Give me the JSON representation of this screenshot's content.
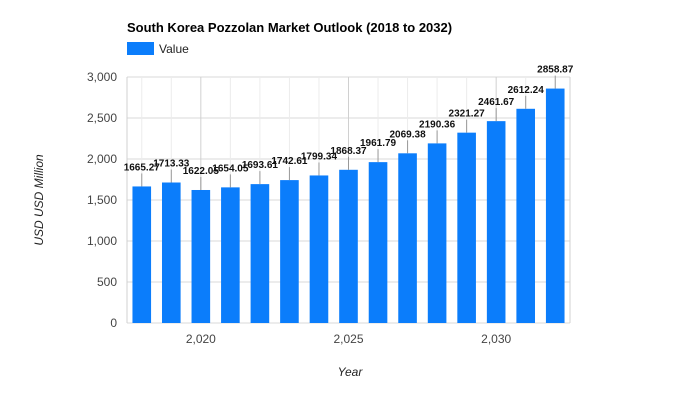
{
  "chart_data": {
    "type": "bar",
    "title": "South Korea Pozzolan Market Outlook (2018 to 2032)",
    "xlabel": "Year",
    "ylabel": "USD USD Million",
    "series": [
      {
        "name": "Value",
        "color": "#0b7dfb",
        "x": [
          2018,
          2019,
          2020,
          2021,
          2022,
          2023,
          2024,
          2025,
          2026,
          2027,
          2028,
          2029,
          2030,
          2031,
          2032
        ],
        "values": [
          1665.27,
          1713.33,
          1622.05,
          1654.05,
          1693.61,
          1742.61,
          1799.34,
          1868.37,
          1961.79,
          2069.38,
          2190.36,
          2321.27,
          2461.67,
          2612.24,
          2858.87
        ]
      }
    ],
    "data_labels": [
      "1665.27",
      "1713.33",
      "1622.05",
      "1654.05",
      "1693.61",
      "1742.61",
      "1799.34",
      "1868.37",
      "1961.79",
      "2069.38",
      "2190.36",
      "2321.27",
      "2461.67",
      "2612.24",
      "2858.87"
    ],
    "y_ticks": [
      0,
      500,
      1000,
      1500,
      2000,
      2500,
      3000
    ],
    "y_tick_labels": [
      "0",
      "500",
      "1,000",
      "1,500",
      "2,000",
      "2,500",
      "3,000"
    ],
    "x_ticks": [
      2020,
      2025,
      2030
    ],
    "x_tick_labels": [
      "2,020",
      "2,025",
      "2,030"
    ],
    "ylim": [
      0,
      3000
    ],
    "xlim": [
      2017.5,
      2032.5
    ],
    "grid": true,
    "legend": {
      "position": "top-left"
    }
  }
}
